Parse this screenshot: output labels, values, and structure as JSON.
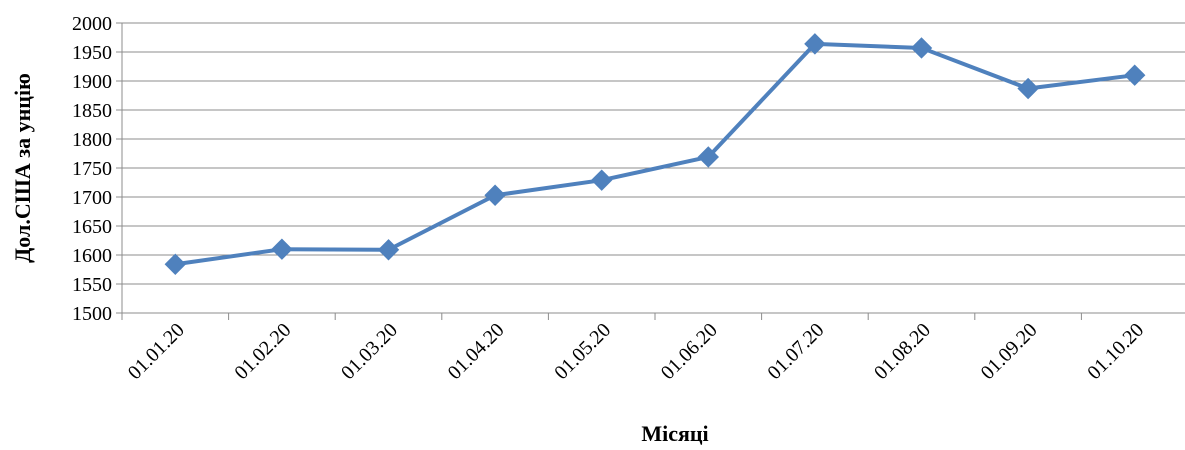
{
  "chart_data": {
    "type": "line",
    "title": "",
    "xlabel": "Місяці",
    "ylabel": "Дол.США за унцію",
    "categories": [
      "01.01.20",
      "01.02.20",
      "01.03.20",
      "01.04.20",
      "01.05.20",
      "01.06.20",
      "01.07.20",
      "01.08.20",
      "01.09.20",
      "01.10.20"
    ],
    "series": [
      {
        "values": [
          1584,
          1610,
          1609,
          1703,
          1729,
          1769,
          1964,
          1957,
          1887,
          1910
        ],
        "color": "#4F81BD",
        "marker": "diamond"
      }
    ],
    "ylim": [
      1500,
      2000
    ],
    "yticks": [
      1500,
      1550,
      1600,
      1650,
      1700,
      1750,
      1800,
      1850,
      1900,
      1950,
      2000
    ],
    "grid": "horizontal",
    "legend": "none"
  }
}
